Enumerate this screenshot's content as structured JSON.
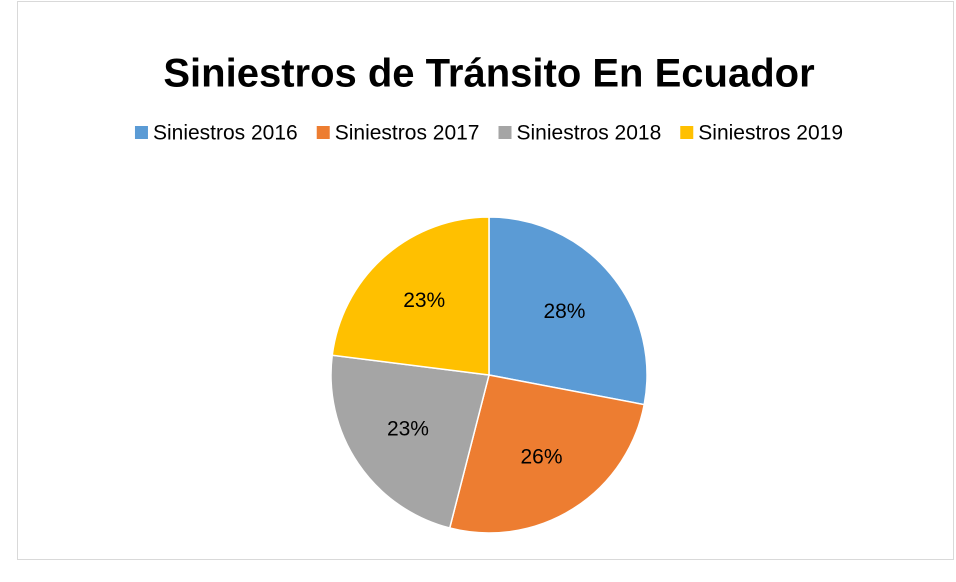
{
  "chart_data": {
    "type": "pie",
    "title": "Siniestros de Tránsito En Ecuador",
    "categories": [
      "Siniestros 2016",
      "Siniestros 2017",
      "Siniestros 2018",
      "Siniestros 2019"
    ],
    "values": [
      28,
      26,
      23,
      23
    ],
    "value_labels": [
      "28%",
      "26%",
      "23%",
      "23%"
    ],
    "colors": [
      "#5b9bd5",
      "#ed7d31",
      "#a5a5a5",
      "#ffc000"
    ],
    "legend": "top"
  }
}
